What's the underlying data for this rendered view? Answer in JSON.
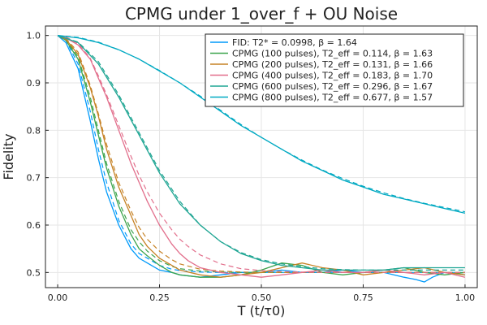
{
  "chart_data": {
    "type": "line",
    "title": "CPMG under 1_over_f + OU Noise",
    "xlabel": "T (t/τ0)",
    "ylabel": "Fidelity",
    "xlim": [
      -0.03,
      1.03
    ],
    "ylim": [
      0.468,
      1.02
    ],
    "xticks": [
      0,
      0.25,
      0.5,
      0.75,
      1.0
    ],
    "xtick_labels": [
      "0.00",
      "0.25",
      "0.50",
      "0.75",
      "1.00"
    ],
    "yticks": [
      0.5,
      0.6,
      0.7,
      0.8,
      0.9,
      1.0
    ],
    "ytick_labels": [
      "0.5",
      "0.6",
      "0.7",
      "0.8",
      "0.9",
      "1.0"
    ],
    "grid": true,
    "legend_position": "top-right",
    "fit_line_style": "dashed",
    "series": [
      {
        "name": "FID: T2* = 0.0998, β = 1.64",
        "color": "#009AFA",
        "x": [
          0,
          0.02,
          0.05,
          0.08,
          0.1,
          0.12,
          0.15,
          0.18,
          0.2,
          0.22,
          0.25,
          0.28,
          0.3,
          0.35,
          0.4,
          0.45,
          0.5,
          0.55,
          0.6,
          0.65,
          0.7,
          0.75,
          0.8,
          0.85,
          0.88,
          0.9,
          0.92,
          0.95,
          1.0
        ],
        "values": [
          1.0,
          0.985,
          0.93,
          0.82,
          0.74,
          0.67,
          0.6,
          0.55,
          0.53,
          0.52,
          0.505,
          0.5,
          0.495,
          0.49,
          0.495,
          0.5,
          0.5,
          0.505,
          0.5,
          0.5,
          0.505,
          0.5,
          0.5,
          0.49,
          0.485,
          0.48,
          0.49,
          0.5,
          0.495
        ],
        "fit": [
          1.0,
          0.99,
          0.94,
          0.84,
          0.76,
          0.69,
          0.61,
          0.56,
          0.54,
          0.53,
          0.515,
          0.507,
          0.504,
          0.501,
          0.5,
          0.5,
          0.5,
          0.5,
          0.5,
          0.5,
          0.5,
          0.5,
          0.5,
          0.5,
          0.5,
          0.5,
          0.5,
          0.5,
          0.5
        ]
      },
      {
        "name": "CPMG (100 pulses), T2_eff = 0.114, β = 1.63",
        "color": "#3DA44D",
        "x": [
          0,
          0.02,
          0.05,
          0.08,
          0.1,
          0.12,
          0.15,
          0.18,
          0.2,
          0.22,
          0.25,
          0.28,
          0.3,
          0.35,
          0.4,
          0.45,
          0.5,
          0.55,
          0.6,
          0.65,
          0.7,
          0.75,
          0.8,
          0.85,
          0.9,
          0.95,
          1.0
        ],
        "values": [
          1.0,
          0.99,
          0.95,
          0.86,
          0.79,
          0.72,
          0.64,
          0.58,
          0.55,
          0.535,
          0.515,
          0.5,
          0.495,
          0.49,
          0.49,
          0.495,
          0.505,
          0.52,
          0.515,
          0.5,
          0.495,
          0.5,
          0.505,
          0.51,
          0.5,
          0.495,
          0.5
        ],
        "fit": [
          1.0,
          0.992,
          0.955,
          0.87,
          0.8,
          0.73,
          0.65,
          0.59,
          0.565,
          0.545,
          0.525,
          0.513,
          0.508,
          0.503,
          0.501,
          0.5,
          0.5,
          0.5,
          0.5,
          0.5,
          0.5,
          0.5,
          0.5,
          0.5,
          0.5,
          0.5,
          0.5
        ]
      },
      {
        "name": "CPMG (200 pulses), T2_eff = 0.131, β = 1.66",
        "color": "#C68225",
        "x": [
          0,
          0.02,
          0.05,
          0.08,
          0.1,
          0.12,
          0.15,
          0.18,
          0.2,
          0.22,
          0.25,
          0.28,
          0.3,
          0.35,
          0.4,
          0.45,
          0.5,
          0.55,
          0.6,
          0.65,
          0.7,
          0.75,
          0.8,
          0.85,
          0.9,
          0.95,
          1.0
        ],
        "values": [
          1.0,
          0.992,
          0.96,
          0.89,
          0.83,
          0.76,
          0.68,
          0.62,
          0.58,
          0.555,
          0.53,
          0.515,
          0.505,
          0.495,
          0.49,
          0.495,
          0.5,
          0.51,
          0.52,
          0.51,
          0.505,
          0.495,
          0.5,
          0.505,
          0.51,
          0.5,
          0.495
        ],
        "fit": [
          1.0,
          0.994,
          0.965,
          0.895,
          0.835,
          0.77,
          0.69,
          0.63,
          0.595,
          0.57,
          0.545,
          0.527,
          0.518,
          0.507,
          0.503,
          0.501,
          0.5,
          0.5,
          0.5,
          0.5,
          0.5,
          0.5,
          0.5,
          0.5,
          0.5,
          0.5,
          0.5
        ]
      },
      {
        "name": "CPMG (400 pulses), T2_eff = 0.183, β = 1.70",
        "color": "#E26F8C",
        "x": [
          0,
          0.02,
          0.05,
          0.08,
          0.1,
          0.12,
          0.15,
          0.18,
          0.2,
          0.22,
          0.25,
          0.28,
          0.3,
          0.32,
          0.35,
          0.4,
          0.45,
          0.5,
          0.55,
          0.6,
          0.65,
          0.7,
          0.75,
          0.8,
          0.85,
          0.9,
          0.95,
          1.0
        ],
        "values": [
          1.0,
          0.995,
          0.98,
          0.95,
          0.91,
          0.87,
          0.8,
          0.73,
          0.69,
          0.65,
          0.6,
          0.56,
          0.54,
          0.525,
          0.51,
          0.5,
          0.495,
          0.49,
          0.495,
          0.5,
          0.505,
          0.5,
          0.5,
          0.505,
          0.5,
          0.495,
          0.5,
          0.49
        ],
        "fit": [
          1.0,
          0.997,
          0.983,
          0.952,
          0.915,
          0.875,
          0.81,
          0.745,
          0.705,
          0.67,
          0.625,
          0.59,
          0.57,
          0.555,
          0.537,
          0.518,
          0.508,
          0.504,
          0.502,
          0.501,
          0.5,
          0.5,
          0.5,
          0.5,
          0.5,
          0.5,
          0.5,
          0.5
        ]
      },
      {
        "name": "CPMG (600 pulses), T2_eff = 0.296, β = 1.67",
        "color": "#1FA593",
        "x": [
          0,
          0.05,
          0.1,
          0.15,
          0.2,
          0.25,
          0.3,
          0.35,
          0.4,
          0.45,
          0.5,
          0.55,
          0.6,
          0.65,
          0.7,
          0.75,
          0.8,
          0.85,
          0.9,
          0.95,
          1.0
        ],
        "values": [
          1.0,
          0.985,
          0.94,
          0.87,
          0.79,
          0.71,
          0.645,
          0.6,
          0.565,
          0.54,
          0.525,
          0.515,
          0.51,
          0.505,
          0.505,
          0.505,
          0.505,
          0.51,
          0.51,
          0.51,
          0.51
        ],
        "fit": [
          1.0,
          0.986,
          0.945,
          0.875,
          0.795,
          0.715,
          0.65,
          0.6,
          0.565,
          0.542,
          0.527,
          0.518,
          0.512,
          0.508,
          0.506,
          0.505,
          0.505,
          0.505,
          0.505,
          0.505,
          0.505
        ]
      },
      {
        "name": "CPMG (800 pulses), T2_eff = 0.677, β = 1.57",
        "color": "#00A9C2",
        "x": [
          0,
          0.05,
          0.1,
          0.15,
          0.2,
          0.25,
          0.3,
          0.35,
          0.4,
          0.45,
          0.5,
          0.55,
          0.6,
          0.65,
          0.7,
          0.75,
          0.8,
          0.85,
          0.9,
          0.95,
          1.0
        ],
        "values": [
          1.0,
          0.995,
          0.985,
          0.97,
          0.95,
          0.925,
          0.9,
          0.87,
          0.84,
          0.81,
          0.785,
          0.76,
          0.735,
          0.715,
          0.695,
          0.68,
          0.665,
          0.655,
          0.645,
          0.635,
          0.625
        ],
        "fit": [
          1.0,
          0.996,
          0.986,
          0.97,
          0.95,
          0.926,
          0.9,
          0.872,
          0.842,
          0.812,
          0.785,
          0.76,
          0.737,
          0.716,
          0.698,
          0.682,
          0.668,
          0.656,
          0.646,
          0.637,
          0.628
        ]
      }
    ]
  }
}
